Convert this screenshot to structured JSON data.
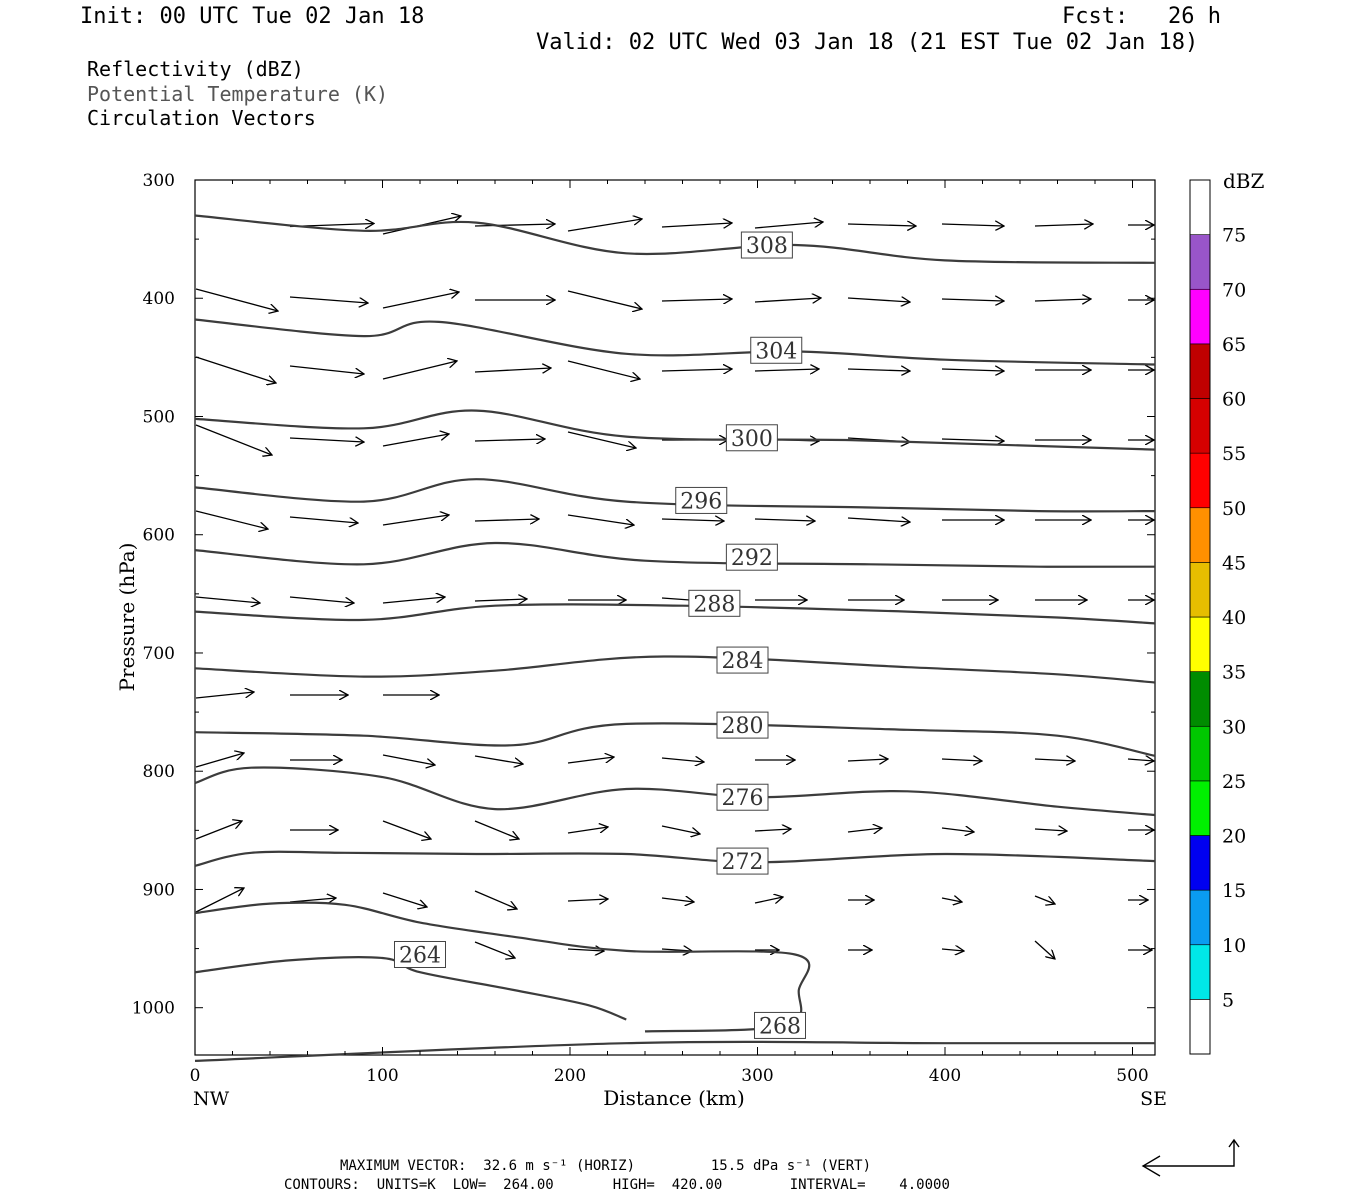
{
  "header": {
    "init": "Init: 00 UTC Tue 02 Jan 18",
    "fcst": "Fcst:   26 h",
    "valid": "Valid: 02 UTC Wed 03 Jan 18 (21 EST Tue 02 Jan 18)",
    "field1": "Reflectivity (dBZ)",
    "field2": "Potential Temperature (K)",
    "field3": "Circulation Vectors"
  },
  "footer": {
    "max_vector": "MAXIMUM VECTOR:  32.6 m s⁻¹ (HORIZ)         15.5 dPa s⁻¹ (VERT)",
    "contours": "CONTOURS:  UNITS=K  LOW=  264.00       HIGH=  420.00        INTERVAL=    4.0000"
  },
  "chart_data": {
    "type": "line",
    "title": "Cross section: Reflectivity (dBZ), Potential Temperature (K), Circulation Vectors",
    "xlabel": "Distance (km)",
    "ylabel": "Pressure (hPa)",
    "xlim": [
      0,
      512
    ],
    "ylim": [
      1040,
      300
    ],
    "x_ticks": [
      0,
      100,
      200,
      300,
      400,
      500
    ],
    "x_tick_labels": [
      "0",
      "100",
      "200",
      "300",
      "400",
      "500"
    ],
    "y_ticks": [
      300,
      400,
      500,
      600,
      700,
      800,
      900,
      1000
    ],
    "y_tick_labels": [
      "300",
      "400",
      "500",
      "600",
      "700",
      "800",
      "900",
      "1000"
    ],
    "left_end_label": "NW",
    "right_end_label": "SE",
    "colorbar": {
      "title": "dBZ",
      "labels": [
        "5",
        "10",
        "15",
        "20",
        "25",
        "30",
        "35",
        "40",
        "45",
        "50",
        "55",
        "60",
        "65",
        "70",
        "75"
      ],
      "bins": [
        {
          "color": "#ffffff"
        },
        {
          "color": "#00e8e8"
        },
        {
          "color": "#0a9cf0"
        },
        {
          "color": "#0000f0"
        },
        {
          "color": "#00f000"
        },
        {
          "color": "#00c800"
        },
        {
          "color": "#008c00"
        },
        {
          "color": "#ffff00"
        },
        {
          "color": "#e6be00"
        },
        {
          "color": "#ff9000"
        },
        {
          "color": "#ff0000"
        },
        {
          "color": "#d60000"
        },
        {
          "color": "#c00000"
        },
        {
          "color": "#ff00ff"
        },
        {
          "color": "#9955c9"
        },
        {
          "color": "#ffffff"
        }
      ]
    },
    "series": [
      {
        "name": "308",
        "label_at": [
          305,
          355
        ],
        "points": [
          [
            0,
            330
          ],
          [
            90,
            343
          ],
          [
            150,
            336
          ],
          [
            230,
            362
          ],
          [
            320,
            355
          ],
          [
            400,
            368
          ],
          [
            512,
            370
          ]
        ]
      },
      {
        "name": "304",
        "label_at": [
          310,
          444
        ],
        "points": [
          [
            0,
            418
          ],
          [
            90,
            432
          ],
          [
            130,
            420
          ],
          [
            230,
            447
          ],
          [
            320,
            445
          ],
          [
            400,
            452
          ],
          [
            512,
            456
          ]
        ]
      },
      {
        "name": "300",
        "label_at": [
          297,
          518
        ],
        "points": [
          [
            0,
            502
          ],
          [
            90,
            510
          ],
          [
            150,
            495
          ],
          [
            230,
            517
          ],
          [
            350,
            520
          ],
          [
            450,
            525
          ],
          [
            512,
            528
          ]
        ]
      },
      {
        "name": "296",
        "label_at": [
          270,
          571
        ],
        "points": [
          [
            0,
            560
          ],
          [
            90,
            572
          ],
          [
            150,
            553
          ],
          [
            230,
            572
          ],
          [
            360,
            577
          ],
          [
            450,
            580
          ],
          [
            512,
            580
          ]
        ]
      },
      {
        "name": "292",
        "label_at": [
          297,
          619
        ],
        "points": [
          [
            0,
            613
          ],
          [
            90,
            625
          ],
          [
            160,
            607
          ],
          [
            240,
            622
          ],
          [
            360,
            625
          ],
          [
            450,
            627
          ],
          [
            512,
            627
          ]
        ]
      },
      {
        "name": "288",
        "label_at": [
          277,
          658
        ],
        "points": [
          [
            0,
            665
          ],
          [
            90,
            672
          ],
          [
            160,
            660
          ],
          [
            260,
            660
          ],
          [
            380,
            665
          ],
          [
            460,
            670
          ],
          [
            512,
            675
          ]
        ]
      },
      {
        "name": "284",
        "label_at": [
          292,
          706
        ],
        "points": [
          [
            0,
            713
          ],
          [
            90,
            720
          ],
          [
            160,
            715
          ],
          [
            250,
            703
          ],
          [
            380,
            712
          ],
          [
            460,
            718
          ],
          [
            512,
            725
          ]
        ]
      },
      {
        "name": "280",
        "label_at": [
          292,
          761
        ],
        "points": [
          [
            0,
            767
          ],
          [
            90,
            770
          ],
          [
            170,
            778
          ],
          [
            230,
            760
          ],
          [
            380,
            765
          ],
          [
            460,
            770
          ],
          [
            512,
            787
          ]
        ]
      },
      {
        "name": "276",
        "label_at": [
          292,
          822
        ],
        "points": [
          [
            0,
            810
          ],
          [
            30,
            797
          ],
          [
            100,
            805
          ],
          [
            160,
            832
          ],
          [
            230,
            815
          ],
          [
            300,
            822
          ],
          [
            380,
            817
          ],
          [
            460,
            830
          ],
          [
            512,
            837
          ]
        ]
      },
      {
        "name": "272",
        "label_at": [
          292,
          876
        ],
        "points": [
          [
            0,
            880
          ],
          [
            30,
            869
          ],
          [
            80,
            869
          ],
          [
            150,
            870
          ],
          [
            230,
            870
          ],
          [
            300,
            877
          ],
          [
            400,
            870
          ],
          [
            512,
            876
          ]
        ]
      },
      {
        "name": "268",
        "label_at": [
          312,
          1015
        ],
        "points": [
          [
            0,
            920
          ],
          [
            40,
            912
          ],
          [
            80,
            913
          ],
          [
            120,
            928
          ],
          [
            170,
            940
          ],
          [
            230,
            952
          ],
          [
            320,
            955
          ],
          [
            322,
            985
          ],
          [
            315,
            1015
          ],
          [
            240,
            1020
          ]
        ]
      },
      {
        "name": "264",
        "label_at": [
          120,
          955
        ],
        "points": [
          [
            0,
            970
          ],
          [
            50,
            960
          ],
          [
            100,
            958
          ],
          [
            120,
            970
          ],
          [
            170,
            985
          ],
          [
            210,
            998
          ],
          [
            230,
            1010
          ]
        ]
      },
      {
        "name": "surface",
        "label_at": null,
        "points": [
          [
            0,
            1045
          ],
          [
            230,
            1030
          ],
          [
            400,
            1030
          ],
          [
            512,
            1030
          ]
        ]
      }
    ]
  }
}
